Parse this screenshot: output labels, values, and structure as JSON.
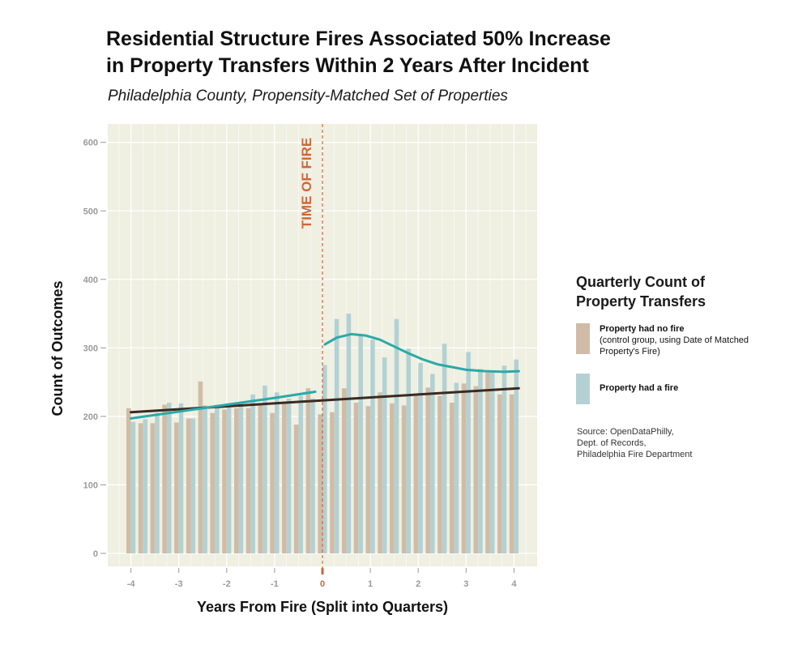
{
  "title_line1": "Residential Structure Fires Associated 50% Increase",
  "title_line2": "in Property Transfers Within 2 Years After Incident",
  "subtitle": "Philadelphia County, Propensity-Matched Set of Properties",
  "legend": {
    "title_line1": "Quarterly Count of",
    "title_line2": "Property Transfers",
    "items": [
      {
        "label": "Property had no fire",
        "note": "(control group, using Date of Matched Property's Fire)",
        "color": "#d0bca6"
      },
      {
        "label": "Property had a fire",
        "note": "",
        "color": "#b3d1d2"
      }
    ]
  },
  "source": [
    "Source: OpenDataPhilly,",
    "Dept. of Records,",
    "Philadelphia Fire Department"
  ],
  "chart_data": {
    "type": "bar",
    "xlabel": "Years From Fire (Split into Quarters)",
    "ylabel": "Count of Outcomes",
    "ylim": [
      0,
      620
    ],
    "xlim": [
      -4.5,
      4.5
    ],
    "yticks": [
      0,
      100,
      200,
      300,
      400,
      500,
      600
    ],
    "xticks": [
      -4,
      -3,
      -2,
      -1,
      0,
      1,
      2,
      3,
      4
    ],
    "annotation": "TIME OF FIRE",
    "annotation_x": 0,
    "grid": true,
    "colors": {
      "no_fire": "#d0bca6",
      "fire": "#b3d1d2",
      "trend_no_fire": "#3a2a22",
      "trend_fire": "#2aaaa8",
      "marker": "#d0663a",
      "panel": "#efefe2"
    },
    "quarters": [
      -4,
      -3.75,
      -3.5,
      -3.25,
      -3,
      -2.75,
      -2.5,
      -2.25,
      -2,
      -1.75,
      -1.5,
      -1.25,
      -1,
      -0.75,
      -0.5,
      -0.25,
      0,
      0.25,
      0.5,
      0.75,
      1,
      1.25,
      1.5,
      1.75,
      2,
      2.25,
      2.5,
      2.75,
      3,
      3.25,
      3.5,
      3.75,
      4
    ],
    "series": [
      {
        "name": "Property had no fire",
        "values": [
          212,
          190,
          190,
          217,
          191,
          197,
          251,
          205,
          210,
          212,
          212,
          218,
          205,
          222,
          188,
          241,
          203,
          206,
          241,
          220,
          215,
          235,
          219,
          216,
          230,
          242,
          230,
          220,
          248,
          244,
          264,
          232,
          232
        ]
      },
      {
        "name": "Property had a fire",
        "values": [
          192,
          196,
          205,
          220,
          219,
          197,
          216,
          217,
          218,
          220,
          232,
          245,
          235,
          226,
          230,
          226,
          275,
          342,
          350,
          320,
          312,
          286,
          342,
          299,
          278,
          262,
          306,
          249,
          294,
          269,
          264,
          274,
          283
        ]
      }
    ],
    "trend_no_fire": [
      [
        -4,
        206
      ],
      [
        4.1,
        241
      ]
    ],
    "trend_fire": [
      [
        -4,
        197
      ],
      [
        -3,
        207
      ],
      [
        -2,
        217
      ],
      [
        -1,
        227
      ],
      [
        -0.15,
        236
      ],
      [
        0.05,
        305
      ],
      [
        0.3,
        315
      ],
      [
        0.6,
        320
      ],
      [
        0.9,
        318
      ],
      [
        1.2,
        312
      ],
      [
        1.5,
        302
      ],
      [
        1.8,
        292
      ],
      [
        2.1,
        283
      ],
      [
        2.4,
        276
      ],
      [
        2.7,
        272
      ],
      [
        3.0,
        268
      ],
      [
        3.4,
        266
      ],
      [
        3.8,
        265
      ],
      [
        4.1,
        266
      ]
    ]
  }
}
